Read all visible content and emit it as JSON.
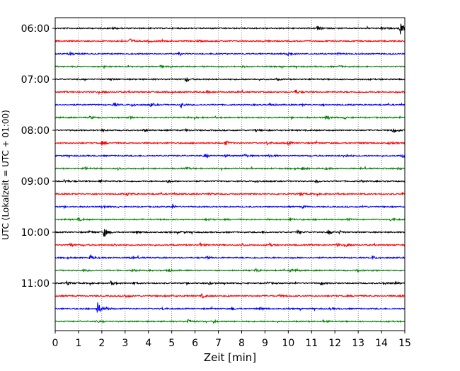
{
  "chart_data": {
    "type": "line",
    "title": "",
    "xlabel": "Zeit  [min]",
    "ylabel": "UTC (Lokalzeit = UTC + 01:00)",
    "xlim": [
      0,
      15
    ],
    "x_ticks": [
      0,
      1,
      2,
      3,
      4,
      5,
      6,
      7,
      8,
      9,
      10,
      11,
      12,
      13,
      14,
      15
    ],
    "x_tick_labels": [
      "0",
      "1",
      "2",
      "3",
      "4",
      "5",
      "6",
      "7",
      "8",
      "9",
      "10",
      "11",
      "12",
      "13",
      "14",
      "15"
    ],
    "y_tick_labels": [
      "06:00",
      "07:00",
      "08:00",
      "09:00",
      "10:00",
      "11:00"
    ],
    "y_tick_rows": [
      0,
      4,
      8,
      12,
      16,
      20
    ],
    "grid": "vertical dotted lines at each minute",
    "trace_colors": [
      "#000000",
      "#ff0000",
      "#0000ff",
      "#008000"
    ],
    "traces": [
      {
        "start": "06:00",
        "events": [
          [
            11.25,
            0.35
          ],
          [
            14.8,
            1.0
          ],
          [
            14.0,
            0.15
          ],
          [
            2.5,
            0.1
          ]
        ]
      },
      {
        "start": "06:15",
        "events": [
          [
            3.2,
            0.35
          ],
          [
            4.0,
            0.15
          ],
          [
            6.1,
            0.1
          ],
          [
            8.9,
            0.1
          ]
        ]
      },
      {
        "start": "06:30",
        "events": [
          [
            0.6,
            0.25
          ],
          [
            9.9,
            0.55
          ],
          [
            12.1,
            0.1
          ],
          [
            5.3,
            0.1
          ]
        ]
      },
      {
        "start": "06:45",
        "events": [
          [
            4.5,
            0.1
          ],
          [
            12.2,
            0.1
          ],
          [
            8.0,
            0.1
          ]
        ]
      },
      {
        "start": "07:00",
        "events": [
          [
            5.6,
            0.3
          ],
          [
            2.3,
            0.1
          ],
          [
            9.5,
            0.1
          ]
        ]
      },
      {
        "start": "07:15",
        "events": [
          [
            10.3,
            0.3
          ],
          [
            6.5,
            0.15
          ],
          [
            2.1,
            0.1
          ]
        ]
      },
      {
        "start": "07:30",
        "events": [
          [
            2.5,
            0.3
          ],
          [
            3.3,
            0.2
          ],
          [
            4.1,
            0.25
          ],
          [
            5.4,
            0.4
          ],
          [
            9.2,
            0.15
          ],
          [
            10.6,
            0.1
          ],
          [
            11.5,
            0.1
          ]
        ]
      },
      {
        "start": "07:45",
        "events": [
          [
            1.5,
            0.2
          ],
          [
            3.2,
            0.1
          ],
          [
            11.6,
            0.2
          ],
          [
            12.4,
            0.15
          ]
        ]
      },
      {
        "start": "08:00",
        "events": [
          [
            14.5,
            0.45
          ],
          [
            2.0,
            0.15
          ],
          [
            3.8,
            0.15
          ],
          [
            5.6,
            0.15
          ],
          [
            8.6,
            0.15
          ]
        ]
      },
      {
        "start": "08:15",
        "events": [
          [
            2.0,
            0.25
          ],
          [
            7.3,
            0.35
          ],
          [
            9.1,
            0.25
          ],
          [
            10.0,
            0.25
          ],
          [
            14.3,
            0.15
          ]
        ]
      },
      {
        "start": "08:30",
        "events": [
          [
            6.4,
            0.25
          ],
          [
            8.1,
            0.25
          ],
          [
            9.2,
            0.2
          ],
          [
            12.4,
            0.25
          ],
          [
            14.9,
            0.2
          ],
          [
            7.3,
            0.15
          ]
        ]
      },
      {
        "start": "08:45",
        "events": [
          [
            1.3,
            0.15
          ],
          [
            2.7,
            0.15
          ],
          [
            10.6,
            0.15
          ],
          [
            11.6,
            0.15
          ],
          [
            14.7,
            0.15
          ],
          [
            5.6,
            0.1
          ]
        ]
      },
      {
        "start": "09:00",
        "events": [
          [
            0.4,
            0.25
          ],
          [
            1.9,
            0.15
          ],
          [
            4.8,
            0.15
          ],
          [
            8.6,
            0.15
          ],
          [
            11.2,
            0.15
          ],
          [
            13.1,
            0.15
          ]
        ]
      },
      {
        "start": "09:15",
        "events": [
          [
            3.1,
            0.2
          ],
          [
            10.5,
            0.2
          ],
          [
            6.6,
            0.1
          ],
          [
            14.9,
            0.15
          ]
        ]
      },
      {
        "start": "09:30",
        "events": [
          [
            5.0,
            0.3
          ],
          [
            10.6,
            0.15
          ],
          [
            13.2,
            0.15
          ],
          [
            2.1,
            0.1
          ]
        ]
      },
      {
        "start": "09:45",
        "events": [
          [
            14.4,
            0.3
          ],
          [
            1.0,
            0.2
          ],
          [
            6.5,
            0.15
          ],
          [
            10.1,
            0.15
          ],
          [
            12.5,
            0.15
          ]
        ]
      },
      {
        "start": "10:00",
        "events": [
          [
            2.1,
            0.7
          ],
          [
            1.5,
            0.2
          ],
          [
            5.4,
            0.15
          ],
          [
            10.4,
            0.3
          ],
          [
            11.7,
            0.3
          ],
          [
            12.2,
            0.2
          ],
          [
            3.5,
            0.15
          ],
          [
            8.9,
            0.15
          ]
        ]
      },
      {
        "start": "10:15",
        "events": [
          [
            0.6,
            0.3
          ],
          [
            6.2,
            0.25
          ],
          [
            8.0,
            0.25
          ],
          [
            9.2,
            0.2
          ],
          [
            12.1,
            0.2
          ],
          [
            12.5,
            0.2
          ],
          [
            2.5,
            0.15
          ]
        ]
      },
      {
        "start": "10:30",
        "events": [
          [
            1.5,
            0.35
          ],
          [
            6.5,
            0.15
          ],
          [
            13.6,
            0.25
          ],
          [
            3.2,
            0.1
          ]
        ]
      },
      {
        "start": "10:45",
        "events": [
          [
            10.1,
            0.3
          ],
          [
            3.3,
            0.2
          ],
          [
            4.8,
            0.2
          ],
          [
            8.6,
            0.2
          ],
          [
            1.2,
            0.15
          ],
          [
            12.9,
            0.15
          ]
        ]
      },
      {
        "start": "11:00",
        "events": [
          [
            0.5,
            0.25
          ],
          [
            2.4,
            0.25
          ],
          [
            3.3,
            0.15
          ],
          [
            9.1,
            0.2
          ],
          [
            11.4,
            0.2
          ],
          [
            14.1,
            0.2
          ],
          [
            14.6,
            0.2
          ],
          [
            6.6,
            0.15
          ]
        ]
      },
      {
        "start": "11:15",
        "events": [
          [
            3.0,
            0.3
          ],
          [
            6.3,
            0.3
          ],
          [
            5.0,
            0.1
          ],
          [
            14.8,
            0.15
          ],
          [
            9.6,
            0.15
          ]
        ]
      },
      {
        "start": "11:30",
        "events": [
          [
            1.8,
            1.0
          ],
          [
            2.2,
            0.2
          ],
          [
            4.6,
            0.15
          ],
          [
            8.8,
            0.15
          ],
          [
            7.6,
            0.15
          ],
          [
            11.8,
            0.1
          ]
        ]
      },
      {
        "start": "11:45",
        "events": [
          [
            5.7,
            0.35
          ],
          [
            6.8,
            0.15
          ],
          [
            11.5,
            0.15
          ],
          [
            1.8,
            0.1
          ]
        ]
      }
    ]
  }
}
